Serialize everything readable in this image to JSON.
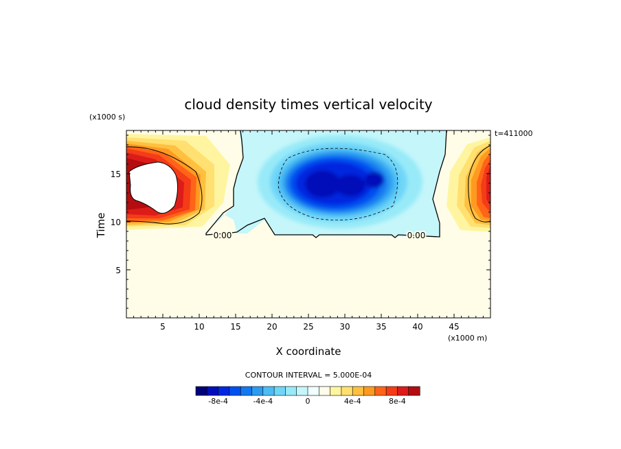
{
  "chart_data": {
    "type": "heatmap",
    "title": "cloud density times vertical velocity",
    "xlabel": "X coordinate",
    "ylabel": "Time",
    "x_unit": "(x1000 m)",
    "y_unit": "(x1000 s)",
    "time_label": "t=411000",
    "xlim": [
      0,
      50
    ],
    "ylim": [
      0,
      19.5
    ],
    "x_ticks": [
      5,
      10,
      15,
      20,
      25,
      30,
      35,
      40,
      45
    ],
    "y_ticks": [
      5,
      10,
      15
    ],
    "contour_interval_label": "CONTOUR INTERVAL = 5.000E-04",
    "contour_labels": [
      {
        "text": "0.00",
        "x": 12.2,
        "y": 8.8
      },
      {
        "text": "0.00",
        "x": 40.0,
        "y": 8.8
      }
    ],
    "features": [
      {
        "kind": "positive maximum",
        "x": 1.5,
        "y": 13.5
      },
      {
        "kind": "positive maximum",
        "x": 49.5,
        "y": 13.5
      },
      {
        "kind": "negative minimum",
        "x": 28.5,
        "y": 14.0
      },
      {
        "kind": "zero contour",
        "x_range": [
          11,
          43
        ],
        "y_min": 9
      }
    ],
    "colorbar": {
      "levels": [
        -0.001,
        -0.0009,
        -0.0008,
        -0.0007,
        -0.0006,
        -0.0005,
        -0.0004,
        -0.0003,
        -0.0002,
        -0.0001,
        0,
        0.0001,
        0.0002,
        0.0003,
        0.0004,
        0.0005,
        0.0006,
        0.0007,
        0.0008,
        0.0009,
        0.001
      ],
      "tick_labels": [
        "-8e-4",
        "-4e-4",
        "0",
        "4e-4",
        "8e-4"
      ],
      "colors": [
        "#00007a",
        "#0010b8",
        "#0028e0",
        "#0050f0",
        "#1478f0",
        "#2c9cf0",
        "#4cbcf4",
        "#70d6f8",
        "#98eaf8",
        "#c4f6fa",
        "#f0ffff",
        "#fffde8",
        "#fff5a0",
        "#ffe070",
        "#ffc040",
        "#ff9a20",
        "#ff6418",
        "#f43c18",
        "#dc1c18",
        "#b40c10"
      ]
    }
  }
}
